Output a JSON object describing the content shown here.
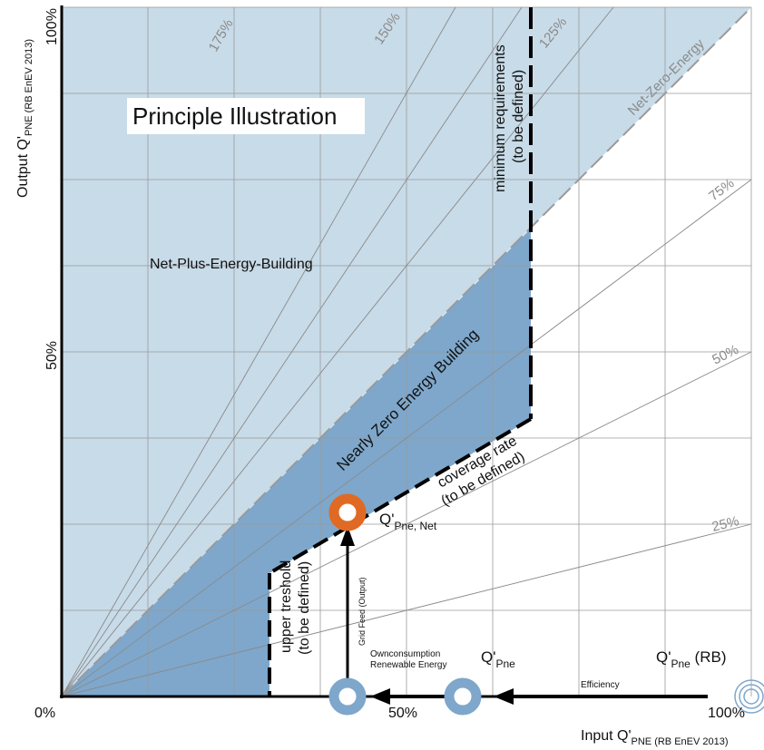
{
  "title": "Principle Illustration",
  "axes": {
    "y_label_main": "Output Q'",
    "y_label_sub": "PNE (RB EnEV 2013)",
    "x_label_main": "Input Q'",
    "x_label_sub": "PNE (RB EnEV 2013)",
    "y_tick_top": "100%",
    "y_tick_mid": "50%",
    "origin": "0%",
    "x_tick_mid": "50%",
    "x_tick_end": "100%"
  },
  "percent_lines": [
    "175%",
    "150%",
    "125%",
    "75%",
    "50%",
    "25%"
  ],
  "regions": {
    "net_plus": "Net-Plus-Energy-Building",
    "nzeb": "Nearly Zero Energy Building",
    "net_zero": "Net-Zero-Energy"
  },
  "annotations": {
    "min_req_1": "minimum requirements",
    "min_req_2": "(to be defined)",
    "coverage_1": "coverage rate",
    "coverage_2": "(to be defined)",
    "upper_1": "upper treshold",
    "upper_2": "(to be defined)",
    "grid_feed": "Grid Feed (Output)",
    "own_1": "Ownconsumption",
    "own_2": "Renewable Energy",
    "efficiency": "Efficiency"
  },
  "points": {
    "qnet_main": "Q'",
    "qnet_sub": "Pne, Net",
    "qpne_main": "Q'",
    "qpne_sub": "Pne",
    "qrb_main": "Q'",
    "qrb_sub": "Pne",
    "qrb_suffix": " (RB)"
  },
  "colors": {
    "light_blue": "#c8dbe8",
    "mid_blue": "#7ea7cb",
    "circle_blue": "#7ea7cb",
    "orange": "#e06a23",
    "grid": "#9a9a9a",
    "line": "#000000"
  }
}
